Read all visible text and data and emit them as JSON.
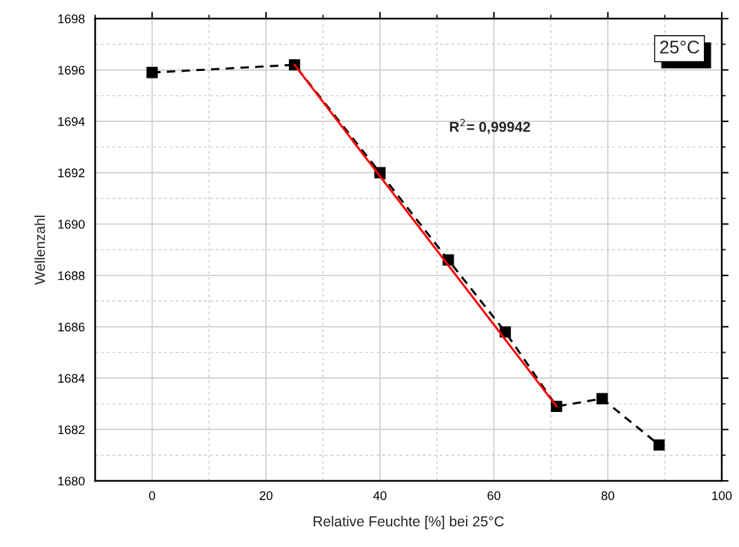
{
  "chart_data": {
    "type": "line",
    "xlabel": "Relative Feuchte [%] bei 25°C",
    "ylabel": "Wellenzahl",
    "series": [
      {
        "color": "#000000",
        "marker": "square",
        "line_style": "dashed",
        "x": [
          0,
          25,
          40,
          52,
          62,
          71,
          79,
          89
        ],
        "values": [
          1695.9,
          1696.2,
          1692.0,
          1688.6,
          1685.8,
          1682.9,
          1683.2,
          1681.4
        ]
      },
      {
        "color": "#ff0000",
        "line_style": "solid",
        "x": [
          25,
          71
        ],
        "values": [
          1696.2,
          1682.9
        ]
      }
    ],
    "annotations": [
      "R$^{2}$= 0,99942",
      "25°C"
    ],
    "xlim": [
      -10,
      100
    ],
    "xticks": [
      0,
      20,
      40,
      60,
      80,
      100
    ],
    "ylim": [
      1680,
      1698
    ],
    "yticks": [
      1680,
      1682,
      1684,
      1686,
      1688,
      1690,
      1692,
      1694,
      1696,
      1698
    ],
    "grid": true
  }
}
